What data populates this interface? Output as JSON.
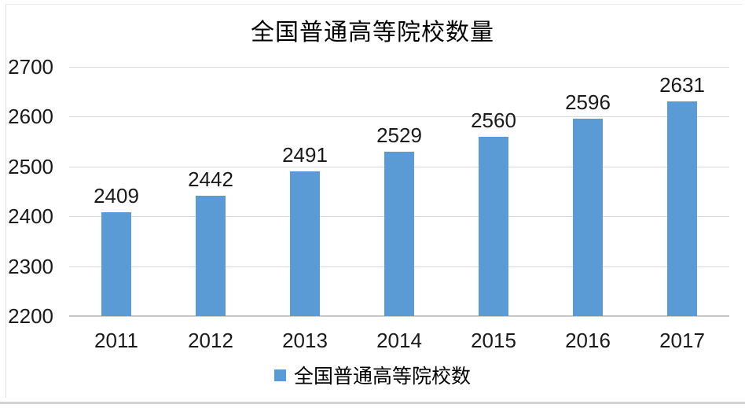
{
  "title": "全国普通高等院校数量",
  "legend": {
    "label": "全国普通高等院校数"
  },
  "colors": {
    "bar": "#5B9BD5",
    "gridline": "#D9D9D9",
    "axis_line": "#C6C6C6",
    "text": "#1a1a1a"
  },
  "chart_data": {
    "type": "bar",
    "title": "全国普通高等院校数量",
    "categories": [
      "2011",
      "2012",
      "2013",
      "2014",
      "2015",
      "2016",
      "2017"
    ],
    "values": [
      2409,
      2442,
      2491,
      2529,
      2560,
      2596,
      2631
    ],
    "series_name": "全国普通高等院校数",
    "xlabel": "",
    "ylabel": "",
    "ylim": [
      2200,
      2700
    ],
    "yticks": [
      2200,
      2300,
      2400,
      2500,
      2600,
      2700
    ],
    "grid": true,
    "data_labels": true,
    "legend_position": "bottom",
    "bar_color": "#5B9BD5"
  }
}
